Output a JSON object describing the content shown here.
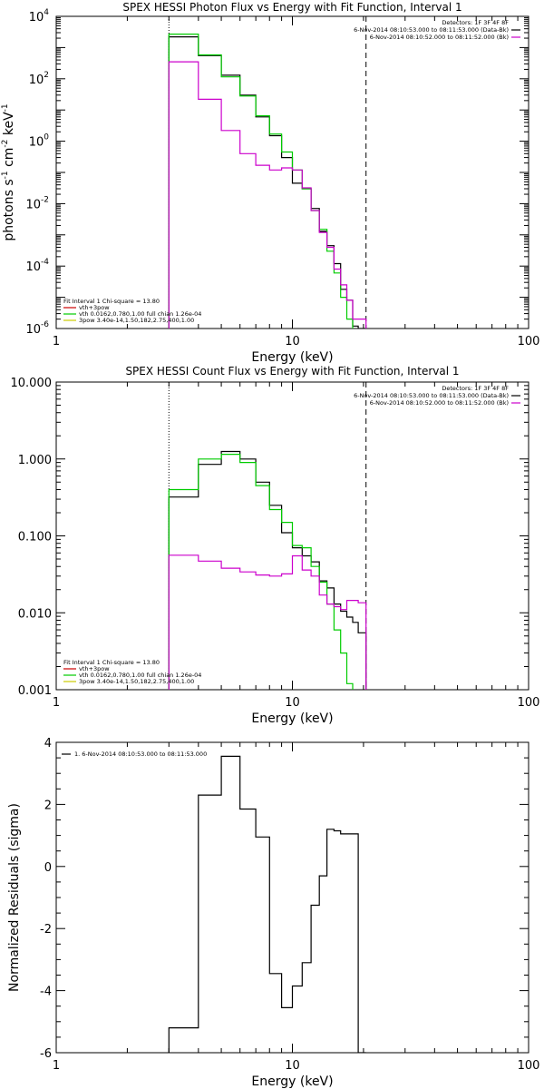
{
  "chart_data": [
    {
      "type": "line",
      "title": "SPEX HESSI Photon Flux vs Energy with Fit Function, Interval 1",
      "xlabel": "Energy (keV)",
      "ylabel_parts": [
        "photons s",
        "-1",
        " cm",
        "-2",
        " keV",
        "-1"
      ],
      "xscale": "log",
      "yscale": "log",
      "xlim": [
        1,
        100
      ],
      "ylim": [
        1e-06,
        10000.0
      ],
      "x_tick_labels": [
        "1",
        "10",
        "100"
      ],
      "y_tick_labels": [
        {
          "base": "10",
          "exp": "-6",
          "value": 1e-06
        },
        {
          "base": "10",
          "exp": "-4",
          "value": 0.0001
        },
        {
          "base": "10",
          "exp": "-2",
          "value": 0.01
        },
        {
          "base": "10",
          "exp": "0",
          "value": 1
        },
        {
          "base": "10",
          "exp": "2",
          "value": 100.0
        },
        {
          "base": "10",
          "exp": "4",
          "value": 10000.0
        }
      ],
      "vlines": [
        {
          "x": 3,
          "style": "dotted"
        },
        {
          "x": 20.5,
          "style": "dashed"
        }
      ],
      "legend_top": {
        "position": "top-right",
        "header": "Detectors: 1F 3F 4F 8F",
        "entries": [
          {
            "text": "6-Nov-2014 08:10:53.000 to 08:11:53.000 (Data-Bk)",
            "color": "#000000"
          },
          {
            "text": "6-Nov-2014 08:10:52.000 to 08:11:52.000 (Bk)",
            "color": "#cc00cc"
          }
        ]
      },
      "legend_fit": {
        "position": "bottom-left",
        "header": "Fit Interval 1    Chi-square = 13.80",
        "entries": [
          {
            "text": "vth+3pow",
            "color": "#cc0000"
          },
          {
            "text": "vth 0.0162,0.780,1.00  full chian 1.26e-04",
            "color": "#00cc00"
          },
          {
            "text": "3pow 3.40e-14,1.50,182,2.75,400,1.00",
            "color": "#cccc00"
          }
        ]
      },
      "series": [
        {
          "name": "Data-Bk",
          "color": "#000000",
          "step": true,
          "edges": [
            3,
            4,
            5,
            6,
            7,
            8,
            9,
            10,
            11,
            12,
            13,
            14,
            15,
            16,
            17,
            18,
            19,
            20.5
          ],
          "values": [
            2200,
            550,
            130,
            30,
            6,
            1.5,
            0.3,
            0.045,
            0.03,
            0.007,
            0.0013,
            0.00045,
            0.00012,
            1.8e-05,
            8e-06,
            1.2e-06,
            1e-06
          ]
        },
        {
          "name": "vth",
          "color": "#00cc00",
          "step": true,
          "edges": [
            3,
            4,
            5,
            6,
            7,
            8,
            9,
            10,
            11,
            12,
            13,
            14,
            15,
            16,
            17,
            18
          ],
          "values": [
            2700,
            580,
            115,
            28,
            6.5,
            1.7,
            0.45,
            0.12,
            0.03,
            0.006,
            0.0015,
            0.0003,
            6e-05,
            1e-05,
            2e-06,
            1e-06
          ]
        },
        {
          "name": "Bk",
          "color": "#cc00cc",
          "step": true,
          "edges": [
            3,
            4,
            5,
            6,
            7,
            8,
            9,
            10,
            11,
            12,
            13,
            14,
            15,
            16,
            17,
            18,
            19,
            20.5
          ],
          "values": [
            350,
            22,
            2.2,
            0.4,
            0.17,
            0.12,
            0.14,
            0.12,
            0.032,
            0.006,
            0.0012,
            0.0004,
            8e-05,
            2.5e-05,
            8e-06,
            2e-06,
            2e-06
          ]
        }
      ]
    },
    {
      "type": "line",
      "title": "SPEX HESSI Count Flux vs Energy with Fit Function, Interval 1",
      "xlabel": "Energy (keV)",
      "ylabel": "",
      "xscale": "log",
      "yscale": "log",
      "xlim": [
        1,
        100
      ],
      "ylim": [
        0.001,
        10
      ],
      "x_tick_labels": [
        "1",
        "10",
        "100"
      ],
      "y_tick_labels": [
        {
          "text": "0.001",
          "value": 0.001
        },
        {
          "text": "0.010",
          "value": 0.01
        },
        {
          "text": "0.100",
          "value": 0.1
        },
        {
          "text": "1.000",
          "value": 1
        },
        {
          "text": "10.000",
          "value": 10
        }
      ],
      "vlines": [
        {
          "x": 3,
          "style": "dotted"
        },
        {
          "x": 20.5,
          "style": "dashed"
        }
      ],
      "legend_top": {
        "position": "top-right",
        "header": "Detectors: 1F 3F 4F 8F",
        "entries": [
          {
            "text": "6-Nov-2014 08:10:53.000 to 08:11:53.000 (Data-Bk)",
            "color": "#000000"
          },
          {
            "text": "6-Nov-2014 08:10:52.000 to 08:11:52.000 (Bk)",
            "color": "#cc00cc"
          }
        ]
      },
      "legend_fit": {
        "position": "bottom-left",
        "header": "Fit Interval 1    Chi-square = 13.80",
        "entries": [
          {
            "text": "vth+3pow",
            "color": "#cc0000"
          },
          {
            "text": "vth 0.0162,0.780,1.00  full chian 1.26e-04",
            "color": "#00cc00"
          },
          {
            "text": "3pow 3.40e-14,1.50,182,2.75,400,1.00",
            "color": "#cccc00"
          }
        ]
      },
      "series": [
        {
          "name": "Data-Bk",
          "color": "#000000",
          "step": true,
          "edges": [
            3,
            4,
            5,
            6,
            7,
            8,
            9,
            10,
            11,
            12,
            13,
            14,
            15,
            16,
            17,
            18,
            19,
            20.5
          ],
          "values": [
            0.32,
            0.85,
            1.25,
            1.0,
            0.5,
            0.25,
            0.11,
            0.07,
            0.055,
            0.046,
            0.026,
            0.021,
            0.013,
            0.0105,
            0.0088,
            0.0075,
            0.0055
          ]
        },
        {
          "name": "vth",
          "color": "#00cc00",
          "step": true,
          "edges": [
            3,
            4,
            5,
            6,
            7,
            8,
            9,
            10,
            11,
            12,
            13,
            14,
            15,
            16,
            17,
            18
          ],
          "values": [
            0.4,
            1.0,
            1.15,
            0.9,
            0.45,
            0.22,
            0.15,
            0.075,
            0.07,
            0.04,
            0.025,
            0.013,
            0.006,
            0.003,
            0.0012,
            0.001
          ]
        },
        {
          "name": "Bk",
          "color": "#cc00cc",
          "step": true,
          "edges": [
            3,
            4,
            5,
            6,
            7,
            8,
            9,
            10,
            11,
            12,
            13,
            14,
            15,
            16,
            17,
            18,
            19,
            20.5
          ],
          "values": [
            0.056,
            0.047,
            0.038,
            0.034,
            0.031,
            0.03,
            0.032,
            0.055,
            0.036,
            0.03,
            0.017,
            0.013,
            0.012,
            0.011,
            0.0145,
            0.0145,
            0.0135
          ]
        }
      ]
    },
    {
      "type": "line",
      "title": "",
      "xlabel": "Energy (keV)",
      "ylabel": "Normalized Residuals (sigma)",
      "xscale": "log",
      "yscale": "linear",
      "xlim": [
        1,
        100
      ],
      "ylim": [
        -6,
        4
      ],
      "x_tick_labels": [
        "1",
        "10",
        "100"
      ],
      "y_tick_labels": [
        {
          "text": "-6",
          "value": -6
        },
        {
          "text": "-4",
          "value": -4
        },
        {
          "text": "-2",
          "value": -2
        },
        {
          "text": "0",
          "value": 0
        },
        {
          "text": "2",
          "value": 2
        },
        {
          "text": "4",
          "value": 4
        }
      ],
      "legend_top": {
        "position": "top-left",
        "entries": [
          {
            "text": "1.  6-Nov-2014 08:10:53.000 to 08:11:53.000",
            "color": "#000000"
          }
        ]
      },
      "series": [
        {
          "name": "1.  6-Nov-2014 08:10:53.000 to 08:11:53.000",
          "color": "#000000",
          "step": true,
          "edges": [
            3,
            4,
            5,
            6,
            7,
            8,
            9,
            10,
            11,
            12,
            13,
            14,
            15,
            16,
            17,
            18,
            19,
            20.5
          ],
          "values": [
            -5.2,
            2.3,
            3.55,
            1.85,
            0.95,
            -3.45,
            -4.55,
            -3.85,
            -3.1,
            -1.25,
            -0.3,
            1.2,
            1.15,
            1.05,
            1.05,
            1.05,
            -6.1
          ]
        }
      ]
    }
  ]
}
